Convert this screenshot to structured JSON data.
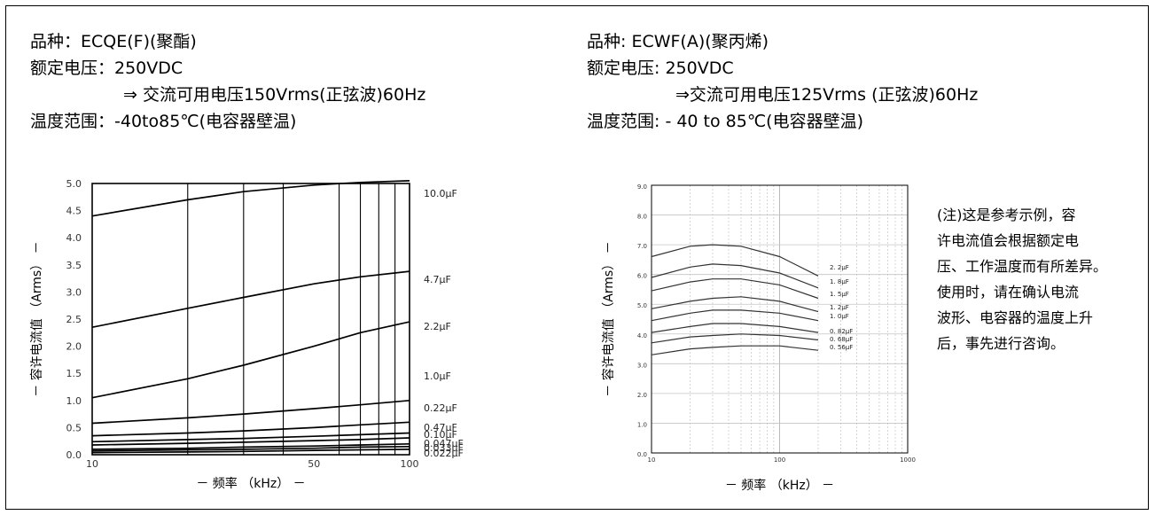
{
  "left_spec": {
    "product": "品种：ECQE(F)(聚酯)",
    "voltage": "额定电压：250VDC",
    "ac_voltage": "⇒ 交流可用电压150Vrms(正弦波)60Hz",
    "temp_range": "温度范围：-40to85℃(电容器壁温)"
  },
  "right_spec": {
    "product": "品种: ECWF(A)(聚丙烯)",
    "voltage": "额定电压: 250VDC",
    "ac_voltage": "⇒交流可用电压125Vrms (正弦波)60Hz",
    "temp_range": "温度范围: - 40 to 85℃(电容器壁温)"
  },
  "note": {
    "lines": [
      "(注)这是参考示例，容",
      "许电流值会根据额定电",
      "压、工作温度而有所差异。",
      "使用时，请在确认电流",
      "波形、电容器的温度上升",
      "后，事先进行咨询。"
    ]
  },
  "chart_data": [
    {
      "type": "line",
      "xlabel": "－ 频率 （kHz） －",
      "ylabel": "－ 容许电流值 （Arms） －",
      "x_scale": "log",
      "xlim": [
        10,
        100
      ],
      "ylim": [
        0,
        5
      ],
      "x_ticks": [
        "10",
        "50",
        "100"
      ],
      "y_ticks": [
        "0.0",
        "0.5",
        "1.0",
        "1.5",
        "2.0",
        "2.5",
        "3.0",
        "3.5",
        "4.0",
        "4.5",
        "5.0"
      ],
      "grid": false,
      "x": [
        10,
        20,
        30,
        50,
        70,
        100
      ],
      "series": [
        {
          "name": "10.0μF",
          "values": [
            4.4,
            4.7,
            4.85,
            4.97,
            5.02,
            5.05
          ]
        },
        {
          "name": "4.7μF",
          "values": [
            2.35,
            2.7,
            2.9,
            3.15,
            3.28,
            3.38
          ]
        },
        {
          "name": "2.2μF",
          "values": [
            1.05,
            1.4,
            1.65,
            2.0,
            2.25,
            2.45
          ]
        },
        {
          "name": "1.0μF",
          "values": [
            0.58,
            0.68,
            0.75,
            0.85,
            0.92,
            1.0
          ]
        },
        {
          "name": "0.22μF",
          "values": [
            0.35,
            0.4,
            0.44,
            0.5,
            0.55,
            0.6
          ]
        },
        {
          "name": "0.47μF",
          "values": [
            0.24,
            0.28,
            0.3,
            0.34,
            0.37,
            0.4
          ]
        },
        {
          "name": "0.10μF",
          "values": [
            0.18,
            0.21,
            0.23,
            0.26,
            0.28,
            0.31
          ]
        },
        {
          "name": "0.047μF",
          "values": [
            0.1,
            0.12,
            0.14,
            0.16,
            0.18,
            0.2
          ]
        },
        {
          "name": "0.033μF",
          "values": [
            0.07,
            0.09,
            0.1,
            0.12,
            0.14,
            0.15
          ]
        },
        {
          "name": "0.022μF",
          "values": [
            0.04,
            0.05,
            0.06,
            0.08,
            0.09,
            0.1
          ]
        }
      ]
    },
    {
      "type": "line",
      "xlabel": "－ 频率 （kHz） －",
      "ylabel": "－ 容许电流值 （Arms） －",
      "x_scale": "log",
      "xlim": [
        10,
        1000
      ],
      "ylim": [
        0,
        9
      ],
      "x_ticks": [
        "10",
        "100",
        "1000"
      ],
      "y_ticks": [
        "0.0",
        "1.0",
        "2.0",
        "3.0",
        "4.0",
        "5.0",
        "6.0",
        "7.0",
        "8.0",
        "9.0"
      ],
      "grid": true,
      "x": [
        10,
        20,
        30,
        50,
        100,
        200
      ],
      "series": [
        {
          "name": "2. 2μF",
          "values": [
            6.6,
            6.95,
            7.0,
            6.95,
            6.6,
            5.95
          ]
        },
        {
          "name": "1. 8μF",
          "values": [
            5.9,
            6.25,
            6.35,
            6.3,
            6.05,
            5.55
          ]
        },
        {
          "name": "1. 5μF",
          "values": [
            5.45,
            5.75,
            5.85,
            5.85,
            5.65,
            5.2
          ]
        },
        {
          "name": "1. 2μF",
          "values": [
            4.85,
            5.1,
            5.2,
            5.25,
            5.1,
            4.75
          ]
        },
        {
          "name": "1. 0μF",
          "values": [
            4.45,
            4.7,
            4.8,
            4.8,
            4.7,
            4.45
          ]
        },
        {
          "name": "0. 82μF",
          "values": [
            4.05,
            4.25,
            4.35,
            4.35,
            4.25,
            4.05
          ]
        },
        {
          "name": "0. 68μF",
          "values": [
            3.7,
            3.9,
            3.95,
            4.0,
            3.95,
            3.8
          ]
        },
        {
          "name": "0. 56μF",
          "values": [
            3.3,
            3.5,
            3.55,
            3.6,
            3.6,
            3.45
          ]
        }
      ]
    }
  ]
}
